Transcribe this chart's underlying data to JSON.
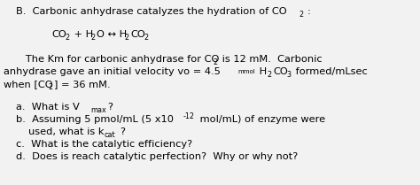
{
  "background_color": "#f2f2f2",
  "font_size": 8.2,
  "font_size_small": 5.8,
  "font_family": "DejaVu Sans"
}
